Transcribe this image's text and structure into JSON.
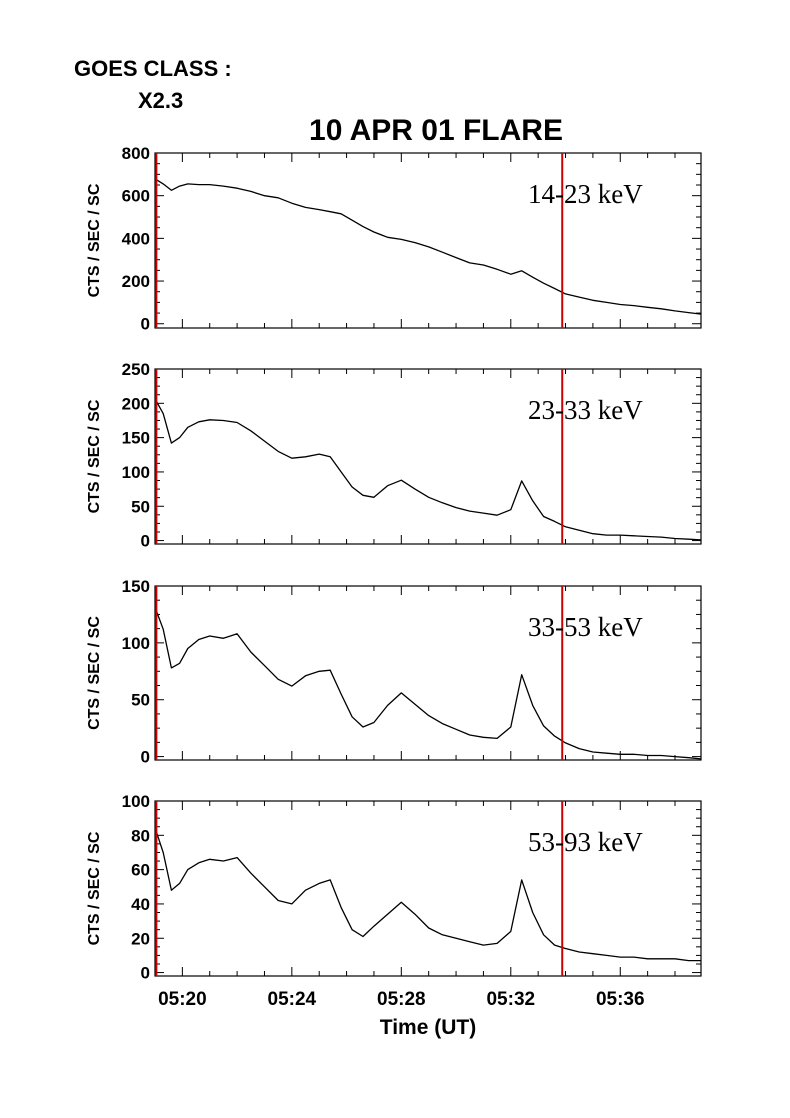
{
  "goes": {
    "label": "GOES CLASS :",
    "value": "X2.3"
  },
  "chart_data": {
    "type": "line",
    "title": "10 APR 01 FLARE",
    "xlabel": "Time (UT)",
    "x_unit": "minutes since 05:00 UT",
    "xlim": [
      19.0,
      38.95
    ],
    "xticks": [
      {
        "value": 20,
        "label": "05:20"
      },
      {
        "value": 24,
        "label": "05:24"
      },
      {
        "value": 28,
        "label": "05:28"
      },
      {
        "value": 32,
        "label": "05:32"
      },
      {
        "value": 36,
        "label": "05:36"
      }
    ],
    "marker_lines": [
      {
        "x": 19.05,
        "color": "#cc0000"
      },
      {
        "x": 33.88,
        "color": "#cc0000"
      }
    ],
    "panels": [
      {
        "ylabel": "CTS / SEC / SC",
        "band_label": "14-23 keV",
        "ylim": [
          -20,
          800
        ],
        "yticks": [
          0,
          200,
          400,
          600,
          800
        ],
        "series": {
          "x": [
            19.05,
            19.3,
            19.6,
            19.9,
            20.2,
            20.6,
            21.0,
            21.5,
            22.0,
            22.5,
            23.0,
            23.5,
            24.0,
            24.5,
            25.0,
            25.4,
            25.8,
            26.2,
            26.6,
            27.0,
            27.5,
            28.0,
            28.5,
            29.0,
            29.5,
            30.0,
            30.5,
            31.0,
            31.5,
            32.0,
            32.4,
            32.8,
            33.2,
            33.6,
            34.0,
            34.5,
            35.0,
            35.5,
            36.0,
            36.5,
            37.0,
            37.5,
            38.0,
            38.5,
            38.95
          ],
          "y": [
            675,
            655,
            625,
            645,
            655,
            652,
            652,
            645,
            635,
            620,
            600,
            590,
            565,
            545,
            535,
            525,
            515,
            485,
            455,
            430,
            405,
            395,
            380,
            360,
            335,
            310,
            285,
            275,
            255,
            232,
            248,
            218,
            190,
            165,
            140,
            125,
            110,
            100,
            90,
            85,
            77,
            70,
            60,
            52,
            45
          ]
        }
      },
      {
        "ylabel": "CTS / SEC / SC",
        "band_label": "23-33 keV",
        "ylim": [
          -5,
          250
        ],
        "yticks": [
          0,
          50,
          100,
          150,
          200,
          250
        ],
        "series": {
          "x": [
            19.05,
            19.3,
            19.6,
            19.9,
            20.2,
            20.6,
            21.0,
            21.5,
            22.0,
            22.5,
            23.0,
            23.5,
            24.0,
            24.5,
            25.0,
            25.4,
            25.8,
            26.2,
            26.6,
            27.0,
            27.5,
            28.0,
            28.5,
            29.0,
            29.5,
            30.0,
            30.5,
            31.0,
            31.5,
            32.0,
            32.4,
            32.8,
            33.2,
            33.6,
            34.0,
            34.5,
            35.0,
            35.5,
            36.0,
            36.5,
            37.0,
            37.5,
            38.0,
            38.5,
            38.95
          ],
          "y": [
            203,
            185,
            142,
            150,
            165,
            173,
            176,
            175,
            172,
            160,
            145,
            130,
            120,
            122,
            126,
            122,
            100,
            78,
            66,
            63,
            80,
            88,
            75,
            63,
            55,
            48,
            43,
            40,
            37,
            45,
            87,
            58,
            35,
            28,
            20,
            15,
            10,
            8,
            8,
            7,
            6,
            5,
            3,
            2,
            1
          ]
        }
      },
      {
        "ylabel": "CTS / SEC / SC",
        "band_label": "33-53 keV",
        "ylim": [
          -3,
          150
        ],
        "yticks": [
          0,
          50,
          100,
          150
        ],
        "series": {
          "x": [
            19.05,
            19.3,
            19.6,
            19.9,
            20.2,
            20.6,
            21.0,
            21.5,
            22.0,
            22.5,
            23.0,
            23.5,
            24.0,
            24.5,
            25.0,
            25.4,
            25.8,
            26.2,
            26.6,
            27.0,
            27.5,
            28.0,
            28.5,
            29.0,
            29.5,
            30.0,
            30.5,
            31.0,
            31.5,
            32.0,
            32.4,
            32.8,
            33.2,
            33.6,
            34.0,
            34.5,
            35.0,
            35.5,
            36.0,
            36.5,
            37.0,
            37.5,
            38.0,
            38.5,
            38.95
          ],
          "y": [
            128,
            112,
            78,
            82,
            95,
            103,
            106,
            104,
            108,
            92,
            80,
            68,
            62,
            71,
            75,
            76,
            55,
            35,
            26,
            30,
            45,
            56,
            46,
            36,
            29,
            24,
            19,
            17,
            16,
            26,
            72,
            45,
            27,
            18,
            12,
            7,
            4,
            3,
            2,
            2,
            1,
            1,
            0,
            -1,
            -2
          ]
        }
      },
      {
        "ylabel": "CTS / SEC / SC",
        "band_label": "53-93 keV",
        "ylim": [
          -2,
          100
        ],
        "yticks": [
          0,
          20,
          40,
          60,
          80,
          100
        ],
        "series": {
          "x": [
            19.05,
            19.3,
            19.6,
            19.9,
            20.2,
            20.6,
            21.0,
            21.5,
            22.0,
            22.5,
            23.0,
            23.5,
            24.0,
            24.5,
            25.0,
            25.4,
            25.8,
            26.2,
            26.6,
            27.0,
            27.5,
            28.0,
            28.5,
            29.0,
            29.5,
            30.0,
            30.5,
            31.0,
            31.5,
            32.0,
            32.4,
            32.8,
            33.2,
            33.6,
            34.0,
            34.5,
            35.0,
            35.5,
            36.0,
            36.5,
            37.0,
            37.5,
            38.0,
            38.5,
            38.95
          ],
          "y": [
            82,
            70,
            48,
            52,
            60,
            64,
            66,
            65,
            67,
            58,
            50,
            42,
            40,
            48,
            52,
            54,
            38,
            25,
            21,
            27,
            34,
            41,
            34,
            26,
            22,
            20,
            18,
            16,
            17,
            24,
            54,
            35,
            22,
            16,
            14,
            12,
            11,
            10,
            9,
            9,
            8,
            8,
            8,
            7,
            7
          ]
        }
      }
    ]
  }
}
